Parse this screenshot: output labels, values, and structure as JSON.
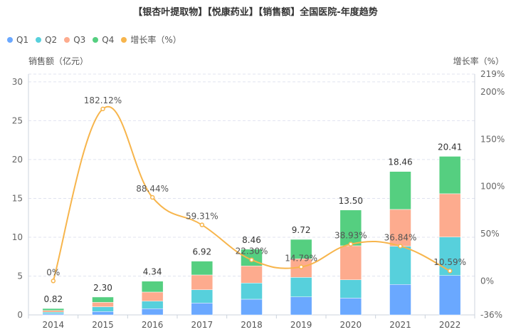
{
  "chart_data": {
    "type": "bar",
    "title": "【银杏叶提取物】【悦康药业】【销售额】全国医院-年度趋势",
    "ylabel": "销售额（亿元）",
    "y2label": "增长率（%）",
    "categories": [
      "2014",
      "2015",
      "2016",
      "2017",
      "2018",
      "2019",
      "2020",
      "2021",
      "2022"
    ],
    "series": [
      {
        "name": "Q1",
        "color": "#6aa8ff",
        "values": [
          0.15,
          0.43,
          0.8,
          1.53,
          2.02,
          2.32,
          2.17,
          3.92,
          5.07
        ]
      },
      {
        "name": "Q2",
        "color": "#57d0dc",
        "values": [
          0.2,
          0.61,
          0.97,
          1.71,
          2.08,
          2.51,
          2.35,
          4.91,
          4.96
        ]
      },
      {
        "name": "Q3",
        "color": "#fdab8e",
        "values": [
          0.22,
          0.58,
          1.17,
          1.9,
          2.2,
          2.39,
          4.38,
          4.75,
          5.57
        ]
      },
      {
        "name": "Q4",
        "color": "#55cf80",
        "values": [
          0.25,
          0.68,
          1.4,
          1.78,
          2.16,
          2.5,
          4.6,
          4.88,
          4.81
        ]
      }
    ],
    "totals": [
      "0.82",
      "2.30",
      "4.34",
      "6.92",
      "8.46",
      "9.72",
      "13.50",
      "18.46",
      "20.41"
    ],
    "line": {
      "name": "增长率（%）",
      "color": "#f7b54c",
      "values": [
        0,
        182.12,
        88.44,
        59.31,
        22.3,
        14.79,
        38.93,
        36.84,
        10.59
      ],
      "labels": [
        "0%",
        "182.12%",
        "88.44%",
        "59.31%",
        "22.30%",
        "14.79%",
        "38.93%",
        "36.84%",
        "10.59%"
      ]
    },
    "ylim": [
      0,
      31
    ],
    "yticks": [
      "0",
      "5",
      "10",
      "15",
      "20",
      "25",
      "30"
    ],
    "y2lim": [
      -36,
      219
    ],
    "y2ticks": [
      {
        "v": -36,
        "label": "-36%"
      },
      {
        "v": 0,
        "label": "0%"
      },
      {
        "v": 50,
        "label": "50%"
      },
      {
        "v": 100,
        "label": "100%"
      },
      {
        "v": 150,
        "label": "150%"
      },
      {
        "v": 200,
        "label": "200%"
      },
      {
        "v": 219,
        "label": "219%"
      }
    ],
    "grid": true,
    "legend_position": "top-left"
  }
}
